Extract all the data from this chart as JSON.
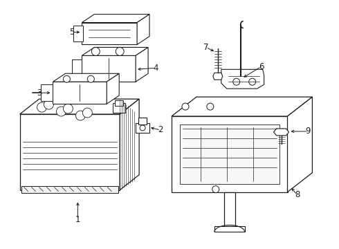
{
  "background_color": "#ffffff",
  "line_color": "#1a1a1a",
  "line_width": 0.8,
  "fig_width": 4.9,
  "fig_height": 3.6,
  "dpi": 100
}
